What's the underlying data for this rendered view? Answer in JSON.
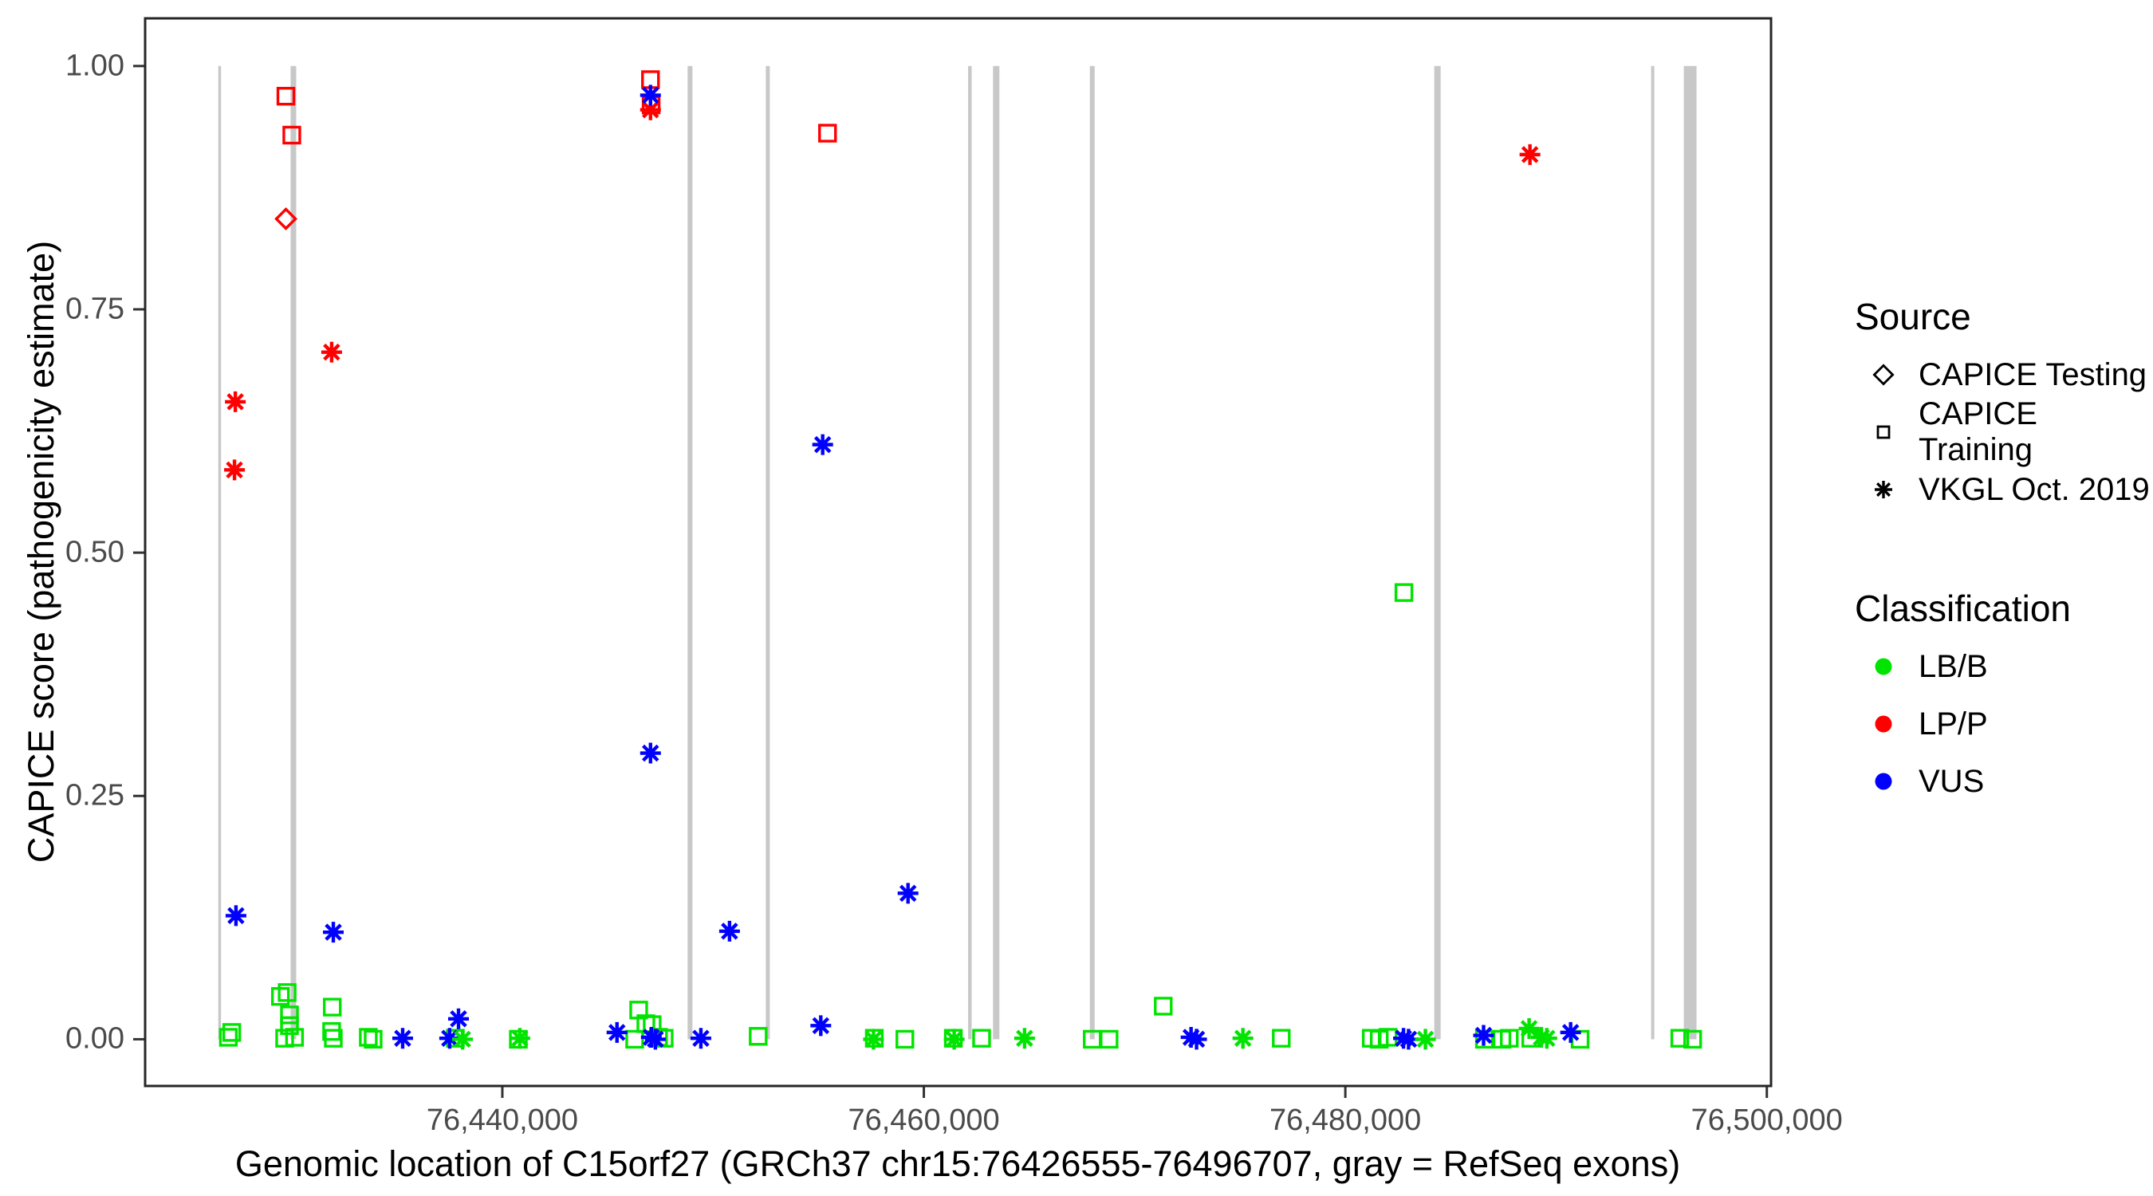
{
  "chart_data": {
    "type": "scatter",
    "title": "",
    "xlabel": "Genomic location of C15orf27 (GRCh37 chr15:76426555-76496707, gray = RefSeq exons)",
    "ylabel": "CAPICE score (pathogenicity estimate)",
    "x_axis": {
      "range": [
        76423050,
        76500200
      ],
      "ticks": [
        {
          "value": 76440000,
          "label": "76,440,000"
        },
        {
          "value": 76460000,
          "label": "76,460,000"
        },
        {
          "value": 76480000,
          "label": "76,480,000"
        },
        {
          "value": 76500000,
          "label": "76,500,000"
        }
      ]
    },
    "y_axis": {
      "range": [
        -0.048,
        1.049
      ],
      "ticks": [
        {
          "value": 0.0,
          "label": "0.00"
        },
        {
          "value": 0.25,
          "label": "0.25"
        },
        {
          "value": 0.5,
          "label": "0.50"
        },
        {
          "value": 0.75,
          "label": "0.75"
        },
        {
          "value": 1.0,
          "label": "1.00"
        }
      ]
    },
    "grid": false,
    "legend_position": "right",
    "exon_color": "#c8c8c8",
    "classification_colors": {
      "LB/B": "#00e400",
      "LP/P": "#ff0000",
      "VUS": "#0000ff"
    },
    "exons": [
      {
        "start": 76426520,
        "end": 76426652
      },
      {
        "start": 76429953,
        "end": 76430218
      },
      {
        "start": 76448790,
        "end": 76449020
      },
      {
        "start": 76452501,
        "end": 76452690
      },
      {
        "start": 76462100,
        "end": 76462270
      },
      {
        "start": 76463282,
        "end": 76463585
      },
      {
        "start": 76467878,
        "end": 76468105
      },
      {
        "start": 76484220,
        "end": 76484523
      },
      {
        "start": 76494510,
        "end": 76494661
      },
      {
        "start": 76496060,
        "end": 76496665
      }
    ],
    "series": [
      {
        "name": "CAPICE Testing",
        "marker": "diamond",
        "points": [
          {
            "x": 76429730,
            "y": 0.843,
            "c": "LP/P"
          }
        ]
      },
      {
        "name": "CAPICE Training",
        "marker": "square",
        "points": [
          {
            "x": 76429730,
            "y": 0.969,
            "c": "LP/P"
          },
          {
            "x": 76430010,
            "y": 0.929,
            "c": "LP/P"
          },
          {
            "x": 76447030,
            "y": 0.986,
            "c": "LP/P"
          },
          {
            "x": 76447060,
            "y": 0.96,
            "c": "LP/P"
          },
          {
            "x": 76455430,
            "y": 0.931,
            "c": "LP/P"
          },
          {
            "x": 76427000,
            "y": 0.002,
            "c": "LB/B"
          },
          {
            "x": 76427160,
            "y": 0.007,
            "c": "LB/B"
          },
          {
            "x": 76429470,
            "y": 0.044,
            "c": "LB/B"
          },
          {
            "x": 76429790,
            "y": 0.048,
            "c": "LB/B"
          },
          {
            "x": 76429900,
            "y": 0.025,
            "c": "LB/B"
          },
          {
            "x": 76429900,
            "y": 0.014,
            "c": "LB/B"
          },
          {
            "x": 76429670,
            "y": 0.001,
            "c": "LB/B"
          },
          {
            "x": 76430140,
            "y": 0.002,
            "c": "LB/B"
          },
          {
            "x": 76431930,
            "y": 0.033,
            "c": "LB/B"
          },
          {
            "x": 76431900,
            "y": 0.008,
            "c": "LB/B"
          },
          {
            "x": 76431980,
            "y": 0.001,
            "c": "LB/B"
          },
          {
            "x": 76433640,
            "y": 0.002,
            "c": "LB/B"
          },
          {
            "x": 76433870,
            "y": 0.0,
            "c": "LB/B"
          },
          {
            "x": 76437770,
            "y": 0.001,
            "c": "LB/B"
          },
          {
            "x": 76440760,
            "y": 0.0,
            "c": "LB/B"
          },
          {
            "x": 76446470,
            "y": 0.03,
            "c": "LB/B"
          },
          {
            "x": 76446810,
            "y": 0.016,
            "c": "LB/B"
          },
          {
            "x": 76447110,
            "y": 0.015,
            "c": "LB/B"
          },
          {
            "x": 76446280,
            "y": 0.0,
            "c": "LB/B"
          },
          {
            "x": 76447410,
            "y": 0.002,
            "c": "LB/B"
          },
          {
            "x": 76447680,
            "y": 0.001,
            "c": "LB/B"
          },
          {
            "x": 76452140,
            "y": 0.003,
            "c": "LB/B"
          },
          {
            "x": 76457650,
            "y": 0.001,
            "c": "LB/B"
          },
          {
            "x": 76459100,
            "y": 0.0,
            "c": "LB/B"
          },
          {
            "x": 76461400,
            "y": 0.001,
            "c": "LB/B"
          },
          {
            "x": 76462740,
            "y": 0.001,
            "c": "LB/B"
          },
          {
            "x": 76467990,
            "y": 0.0,
            "c": "LB/B"
          },
          {
            "x": 76468790,
            "y": 0.0,
            "c": "LB/B"
          },
          {
            "x": 76471360,
            "y": 0.034,
            "c": "LB/B"
          },
          {
            "x": 76476960,
            "y": 0.001,
            "c": "LB/B"
          },
          {
            "x": 76481230,
            "y": 0.001,
            "c": "LB/B"
          },
          {
            "x": 76481610,
            "y": 0.0,
            "c": "LB/B"
          },
          {
            "x": 76482030,
            "y": 0.002,
            "c": "LB/B"
          },
          {
            "x": 76482780,
            "y": 0.459,
            "c": "LB/B"
          },
          {
            "x": 76486600,
            "y": 0.0,
            "c": "LB/B"
          },
          {
            "x": 76487430,
            "y": 0.0,
            "c": "LB/B"
          },
          {
            "x": 76487780,
            "y": 0.001,
            "c": "LB/B"
          },
          {
            "x": 76488800,
            "y": 0.001,
            "c": "LB/B"
          },
          {
            "x": 76491140,
            "y": 0.0,
            "c": "LB/B"
          },
          {
            "x": 76495870,
            "y": 0.001,
            "c": "LB/B"
          },
          {
            "x": 76496480,
            "y": 0.0,
            "c": "LB/B"
          }
        ]
      },
      {
        "name": "VKGL Oct. 2019",
        "marker": "asterisk",
        "points": [
          {
            "x": 76447030,
            "y": 0.955,
            "c": "LP/P"
          },
          {
            "x": 76431900,
            "y": 0.706,
            "c": "LP/P"
          },
          {
            "x": 76427330,
            "y": 0.655,
            "c": "LP/P"
          },
          {
            "x": 76427290,
            "y": 0.585,
            "c": "LP/P"
          },
          {
            "x": 76488760,
            "y": 0.909,
            "c": "LP/P"
          },
          {
            "x": 76447030,
            "y": 0.97,
            "c": "VUS"
          },
          {
            "x": 76455200,
            "y": 0.611,
            "c": "VUS"
          },
          {
            "x": 76447030,
            "y": 0.294,
            "c": "VUS"
          },
          {
            "x": 76427360,
            "y": 0.127,
            "c": "VUS"
          },
          {
            "x": 76431980,
            "y": 0.11,
            "c": "VUS"
          },
          {
            "x": 76450780,
            "y": 0.111,
            "c": "VUS"
          },
          {
            "x": 76459250,
            "y": 0.15,
            "c": "VUS"
          },
          {
            "x": 76437920,
            "y": 0.021,
            "c": "VUS"
          },
          {
            "x": 76437500,
            "y": 0.001,
            "c": "VUS"
          },
          {
            "x": 76435270,
            "y": 0.001,
            "c": "VUS"
          },
          {
            "x": 76445440,
            "y": 0.007,
            "c": "VUS"
          },
          {
            "x": 76447070,
            "y": 0.002,
            "c": "VUS"
          },
          {
            "x": 76447260,
            "y": 0.0,
            "c": "VUS"
          },
          {
            "x": 76449420,
            "y": 0.001,
            "c": "VUS"
          },
          {
            "x": 76455110,
            "y": 0.014,
            "c": "VUS"
          },
          {
            "x": 76472680,
            "y": 0.002,
            "c": "VUS"
          },
          {
            "x": 76472940,
            "y": 0.0,
            "c": "VUS"
          },
          {
            "x": 76482760,
            "y": 0.001,
            "c": "VUS"
          },
          {
            "x": 76483000,
            "y": 0.0,
            "c": "VUS"
          },
          {
            "x": 76486560,
            "y": 0.004,
            "c": "VUS"
          },
          {
            "x": 76490690,
            "y": 0.007,
            "c": "VUS"
          },
          {
            "x": 76438110,
            "y": 0.0,
            "c": "LB/B"
          },
          {
            "x": 76440830,
            "y": 0.001,
            "c": "LB/B"
          },
          {
            "x": 76457610,
            "y": 0.0,
            "c": "LB/B"
          },
          {
            "x": 76461440,
            "y": 0.0,
            "c": "LB/B"
          },
          {
            "x": 76464780,
            "y": 0.001,
            "c": "LB/B"
          },
          {
            "x": 76475140,
            "y": 0.001,
            "c": "LB/B"
          },
          {
            "x": 76483800,
            "y": 0.0,
            "c": "LB/B"
          },
          {
            "x": 76488720,
            "y": 0.011,
            "c": "LB/B"
          },
          {
            "x": 76489300,
            "y": 0.002,
            "c": "LB/B"
          },
          {
            "x": 76489560,
            "y": 0.001,
            "c": "LB/B"
          }
        ]
      }
    ]
  },
  "legend": {
    "source": {
      "title": "Source",
      "items": [
        {
          "label": "CAPICE Testing",
          "marker": "diamond"
        },
        {
          "label": "CAPICE Training",
          "marker": "square"
        },
        {
          "label": "VKGL Oct. 2019",
          "marker": "asterisk"
        }
      ]
    },
    "classification": {
      "title": "Classification",
      "items": [
        {
          "label": "LB/B",
          "color": "#00e400"
        },
        {
          "label": "LP/P",
          "color": "#ff0000"
        },
        {
          "label": "VUS",
          "color": "#0000ff"
        }
      ]
    }
  }
}
